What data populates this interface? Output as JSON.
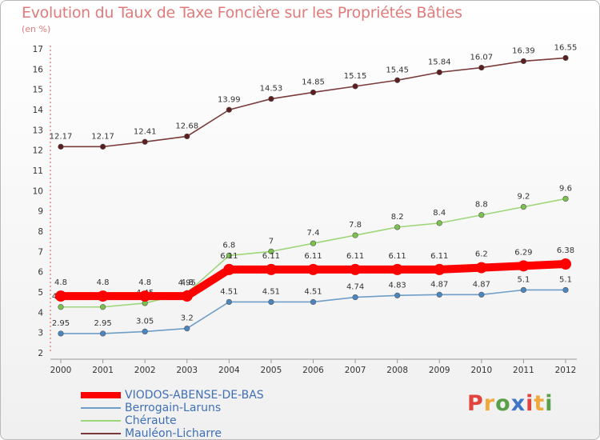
{
  "header": {
    "title": "Evolution du Taux de Taxe Foncière sur les Propriétés Bâties",
    "unit": "(en %)"
  },
  "logo": {
    "text": "Proxiti",
    "colors": [
      "#e0443c",
      "#f0a93a",
      "#5aa04a",
      "#3e76c8",
      "#e0443c",
      "#f0a93a",
      "#5aa04a"
    ]
  },
  "chart_data": {
    "type": "line",
    "x": [
      "2000",
      "2001",
      "2002",
      "2003",
      "2004",
      "2005",
      "2006",
      "2007",
      "2008",
      "2009",
      "2010",
      "2011",
      "2012"
    ],
    "ylim": [
      2,
      17
    ],
    "yticks": [
      2,
      3,
      4,
      5,
      6,
      7,
      8,
      9,
      10,
      11,
      12,
      13,
      14,
      15,
      16,
      17
    ],
    "grid": false,
    "legend": "bottom-left",
    "series": [
      {
        "name": "Mauléon-Licharre",
        "color": "#7a3a3a",
        "marker": "#5c1e1e",
        "values": [
          12.17,
          12.17,
          12.41,
          12.68,
          13.99,
          14.53,
          14.85,
          15.15,
          15.45,
          15.84,
          16.07,
          16.39,
          16.55
        ],
        "labels": [
          "12.17",
          "12.17",
          "12.41",
          "12.68",
          "13.99",
          "14.53",
          "14.85",
          "15.15",
          "15.45",
          "15.84",
          "16.07",
          "16.39",
          "16.55"
        ]
      },
      {
        "name": "Chéraute",
        "color": "#9ed67a",
        "marker": "#7cc04e",
        "values": [
          4.26,
          4.26,
          4.45,
          4.95,
          6.8,
          7,
          7.4,
          7.8,
          8.2,
          8.4,
          8.8,
          9.2,
          9.6
        ],
        "labels": [
          "4.26",
          "4.26",
          "4.45",
          "4.95",
          "6.8",
          "7",
          "7.4",
          "7.8",
          "8.2",
          "8.4",
          "8.8",
          "9.2",
          "9.6"
        ]
      },
      {
        "name": "Berrogain-Laruns",
        "color": "#6e9ec8",
        "marker": "#4a86c0",
        "values": [
          2.95,
          2.95,
          3.05,
          3.2,
          4.51,
          4.51,
          4.51,
          4.74,
          4.83,
          4.87,
          4.87,
          5.1,
          5.1
        ],
        "labels": [
          "2.95",
          "2.95",
          "3.05",
          "3.2",
          "4.51",
          "4.51",
          "4.51",
          "4.74",
          "4.83",
          "4.87",
          "4.87",
          "5.1",
          "5.1"
        ]
      },
      {
        "name": "VIODOS-ABENSE-DE-BAS",
        "color": "#ff0000",
        "marker": "#ff0000",
        "values": [
          4.8,
          4.8,
          4.8,
          4.8,
          6.11,
          6.11,
          6.11,
          6.11,
          6.11,
          6.11,
          6.2,
          6.29,
          6.38
        ],
        "labels": [
          "4.8",
          "4.8",
          "4.8",
          "4.8",
          "6.11",
          "6.11",
          "6.11",
          "6.11",
          "6.11",
          "6.11",
          "6.2",
          "6.29",
          "6.38"
        ]
      }
    ],
    "legend_entries": [
      {
        "name": "VIODOS-ABENSE-DE-BAS",
        "color": "#ff0000"
      },
      {
        "name": "Berrogain-Laruns",
        "color": "#6e9ec8"
      },
      {
        "name": "Chéraute",
        "color": "#9ed67a"
      },
      {
        "name": "Mauléon-Licharre",
        "color": "#7a3a3a"
      }
    ]
  }
}
